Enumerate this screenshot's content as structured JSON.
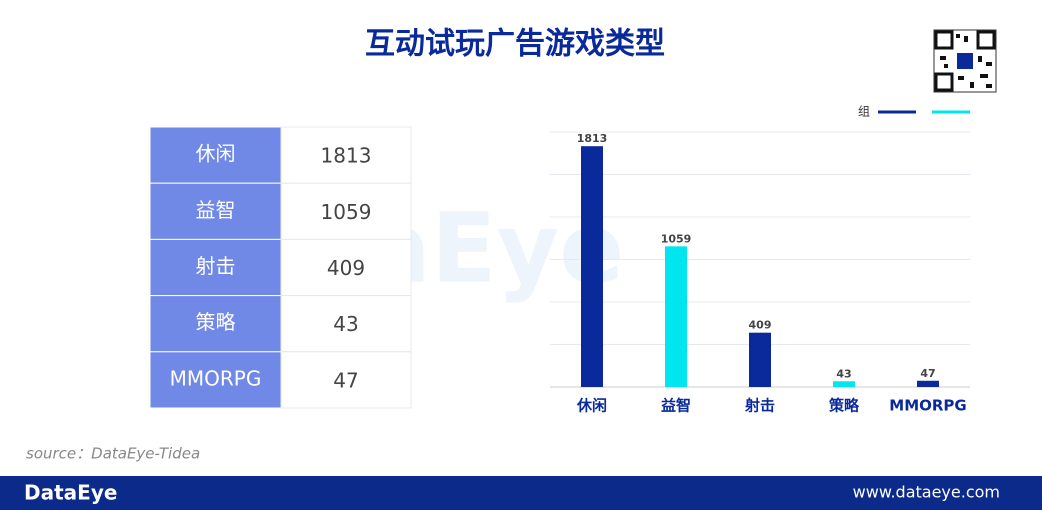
{
  "title": "互动试玩广告游戏类型",
  "watermark": "DataEye",
  "table": {
    "rows": [
      [
        "休闲",
        1813
      ],
      [
        "益智",
        1059
      ],
      [
        "射击",
        409
      ],
      [
        "策略",
        43
      ],
      [
        "MMORPG",
        47
      ]
    ]
  },
  "chart_data": {
    "type": "bar",
    "categories": [
      "休闲",
      "益智",
      "射击",
      "策略",
      "MMORPG"
    ],
    "values": [
      1813,
      1059,
      409,
      43,
      47
    ],
    "colors": [
      "#0a2a9c",
      "#00e5ee",
      "#0a2a9c",
      "#00e5ee",
      "#0a2a9c"
    ],
    "legend": [
      {
        "name": "组",
        "color": "#0a2a9c"
      },
      {
        "color": "#00e5ee"
      }
    ],
    "ylim": [
      0,
      1920
    ],
    "yticks": [
      0,
      320,
      640,
      960,
      1280,
      1600,
      1920
    ],
    "grid": true
  },
  "source": "source：DataEye-Tidea",
  "footer": {
    "brand": "DataEye",
    "url": "www.dataeye.com"
  }
}
